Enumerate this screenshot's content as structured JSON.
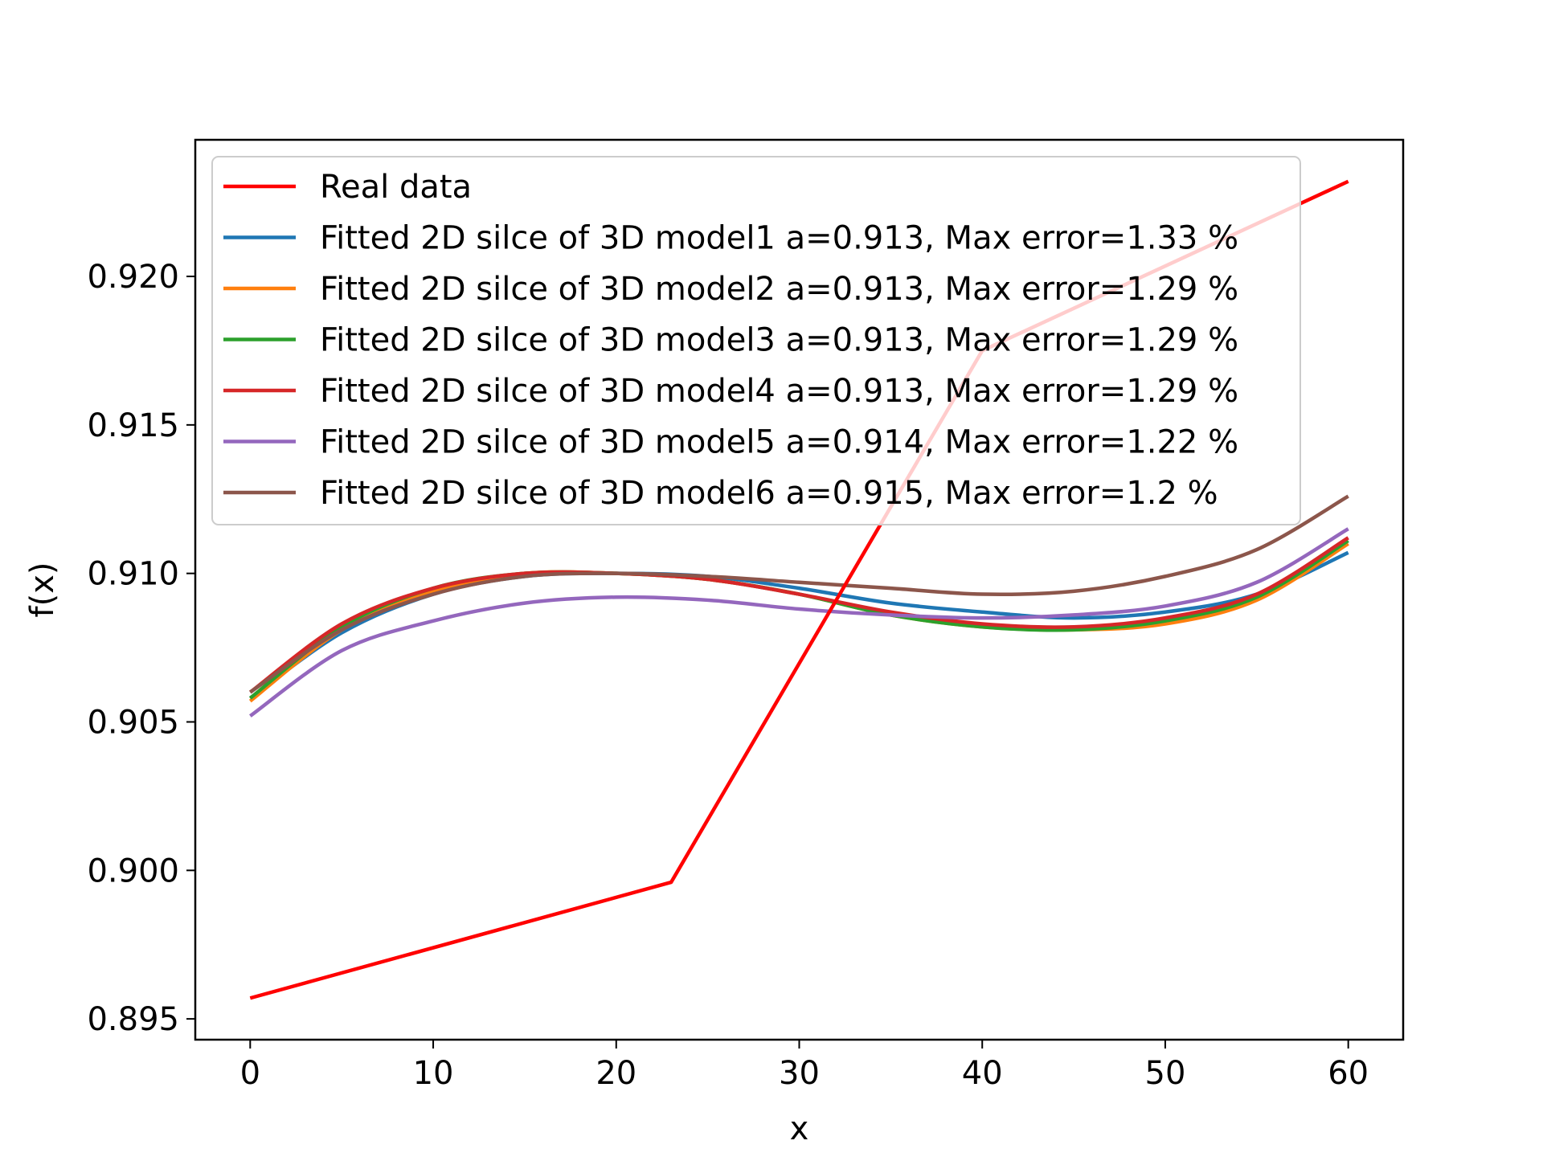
{
  "chart_data": {
    "type": "line",
    "title": "",
    "xlabel": "x",
    "ylabel": "f(x)",
    "xlim": [
      -3,
      63
    ],
    "ylim": [
      0.8943,
      0.9246
    ],
    "xticks": [
      0,
      10,
      20,
      30,
      40,
      50,
      60
    ],
    "xtick_labels": [
      "0",
      "10",
      "20",
      "30",
      "40",
      "50",
      "60"
    ],
    "yticks": [
      0.895,
      0.9,
      0.905,
      0.91,
      0.915,
      0.92
    ],
    "ytick_labels": [
      "0.895",
      "0.900",
      "0.905",
      "0.910",
      "0.915",
      "0.920"
    ],
    "grid": false,
    "legend_position": "top-left",
    "series": [
      {
        "name": "Real data",
        "color": "#ff0000",
        "x": [
          0,
          23,
          40,
          60
        ],
        "y": [
          0.8957,
          0.8996,
          0.9175,
          0.9232
        ]
      },
      {
        "name": "Fitted 2D silce of 3D model1 a=0.913, Max error=1.33 %",
        "color": "#1f77b4",
        "x": [
          0,
          5,
          10,
          15,
          20,
          25,
          30,
          35,
          40,
          45,
          50,
          55,
          60
        ],
        "y": [
          0.9058,
          0.908,
          0.9093,
          0.9099,
          0.91,
          0.9099,
          0.9095,
          0.909,
          0.9087,
          0.9085,
          0.9087,
          0.9093,
          0.9107
        ]
      },
      {
        "name": "Fitted 2D silce of 3D model2 a=0.913, Max error=1.29 %",
        "color": "#ff7f0e",
        "x": [
          0,
          5,
          10,
          15,
          20,
          25,
          30,
          35,
          40,
          45,
          50,
          55,
          60
        ],
        "y": [
          0.9057,
          0.9081,
          0.9094,
          0.91,
          0.91,
          0.9098,
          0.9093,
          0.9086,
          0.9082,
          0.9081,
          0.9083,
          0.9091,
          0.911
        ]
      },
      {
        "name": "Fitted 2D silce of 3D model3 a=0.913, Max error=1.29 %",
        "color": "#2ca02c",
        "x": [
          0,
          5,
          10,
          15,
          20,
          25,
          30,
          35,
          40,
          45,
          50,
          55,
          60
        ],
        "y": [
          0.9058,
          0.9082,
          0.9095,
          0.91,
          0.91,
          0.9098,
          0.9093,
          0.9086,
          0.9082,
          0.9081,
          0.9084,
          0.9092,
          0.9111
        ]
      },
      {
        "name": "Fitted 2D silce of 3D model4 a=0.913, Max error=1.29 %",
        "color": "#d62728",
        "x": [
          0,
          5,
          10,
          15,
          20,
          25,
          30,
          35,
          40,
          45,
          50,
          55,
          60
        ],
        "y": [
          0.906,
          0.9083,
          0.9095,
          0.91,
          0.91,
          0.9098,
          0.9093,
          0.9087,
          0.9083,
          0.9082,
          0.9085,
          0.9093,
          0.9112
        ]
      },
      {
        "name": "Fitted 2D silce of 3D model5 a=0.914, Max error=1.22 %",
        "color": "#9467bd",
        "x": [
          0,
          5,
          10,
          15,
          20,
          25,
          30,
          35,
          40,
          45,
          50,
          55,
          60
        ],
        "y": [
          0.9052,
          0.9074,
          0.9084,
          0.909,
          0.9092,
          0.9091,
          0.9088,
          0.9086,
          0.9085,
          0.9086,
          0.9089,
          0.9097,
          0.9115
        ]
      },
      {
        "name": "Fitted 2D silce of 3D model6 a=0.915, Max error=1.2 %",
        "color": "#8c564b",
        "x": [
          0,
          5,
          10,
          15,
          20,
          25,
          30,
          35,
          40,
          45,
          50,
          55,
          60
        ],
        "y": [
          0.906,
          0.9081,
          0.9093,
          0.9099,
          0.91,
          0.9099,
          0.9097,
          0.9095,
          0.9093,
          0.9094,
          0.9099,
          0.9108,
          0.9126
        ]
      }
    ]
  }
}
